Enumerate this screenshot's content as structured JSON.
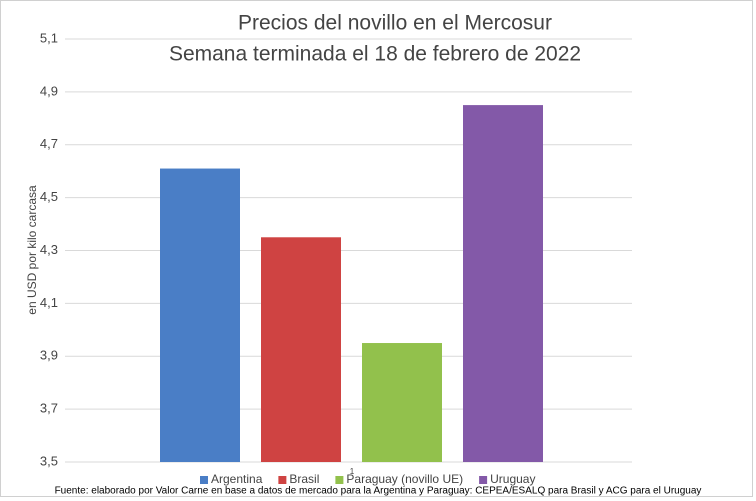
{
  "chart_data": {
    "type": "bar",
    "title": "Precios del novillo en el Mercosur",
    "subtitle": "Semana terminada el 18 de febrero de 2022",
    "y_label": "en USD por kilo carcasa",
    "series": [
      {
        "name": "Argentina",
        "color": "#4a7ec6",
        "values": [
          4.61
        ]
      },
      {
        "name": "Brasil",
        "color": "#cf4342",
        "values": [
          4.35
        ]
      },
      {
        "name": "Paraguay (novillo UE)",
        "color": "#92c14c",
        "values": [
          3.95
        ]
      },
      {
        "name": "Uruguay",
        "color": "#8359a8",
        "values": [
          4.85
        ]
      }
    ],
    "ylim": [
      3.5,
      5.1
    ],
    "yticks": [
      {
        "value": 3.5,
        "label": "3,5"
      },
      {
        "value": 3.7,
        "label": "3,7"
      },
      {
        "value": 3.9,
        "label": "3,9"
      },
      {
        "value": 4.1,
        "label": "4,1"
      },
      {
        "value": 4.3,
        "label": "4,3"
      },
      {
        "value": 4.5,
        "label": "4,5"
      },
      {
        "value": 4.7,
        "label": "4,7"
      },
      {
        "value": 4.9,
        "label": "4,9"
      },
      {
        "value": 5.1,
        "label": "5,1"
      }
    ],
    "grid": true,
    "legend": "bottom",
    "annotation": "1",
    "source": "Fuente: elaborado por Valor Carne en base a datos de mercado para la Argentina y Paraguay: CEPEA/ESALQ para Brasil y ACG para el Uruguay"
  }
}
